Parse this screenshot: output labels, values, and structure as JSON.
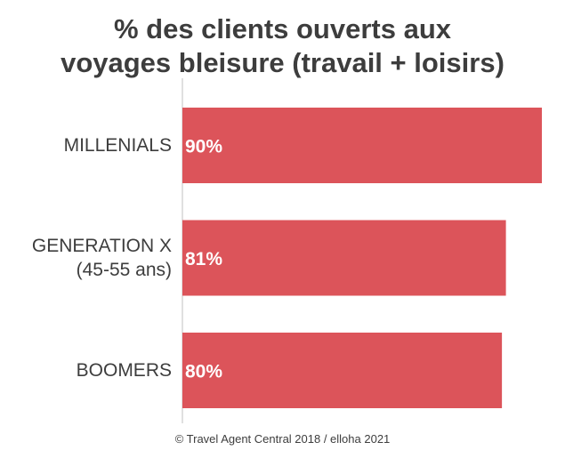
{
  "title_line1": "% des clients ouverts aux",
  "title_line2": "voyages bleisure (travail + loisirs)",
  "source": "© Travel Agent Central 2018 / elloha 2021",
  "colors": {
    "bar": "#dc545a",
    "text": "#3d3d3d",
    "axis": "#d6d6d6",
    "label": "#ffffff"
  },
  "chart_data": {
    "type": "bar",
    "orientation": "horizontal",
    "categories": [
      {
        "line1": "MILLENIALS",
        "line2": ""
      },
      {
        "line1": "GENERATION X",
        "line2": "(45-55 ans)"
      },
      {
        "line1": "BOOMERS",
        "line2": ""
      }
    ],
    "values": [
      90,
      81,
      80
    ],
    "value_labels": [
      "90%",
      "81%",
      "80%"
    ],
    "xlim": [
      0,
      90
    ]
  }
}
